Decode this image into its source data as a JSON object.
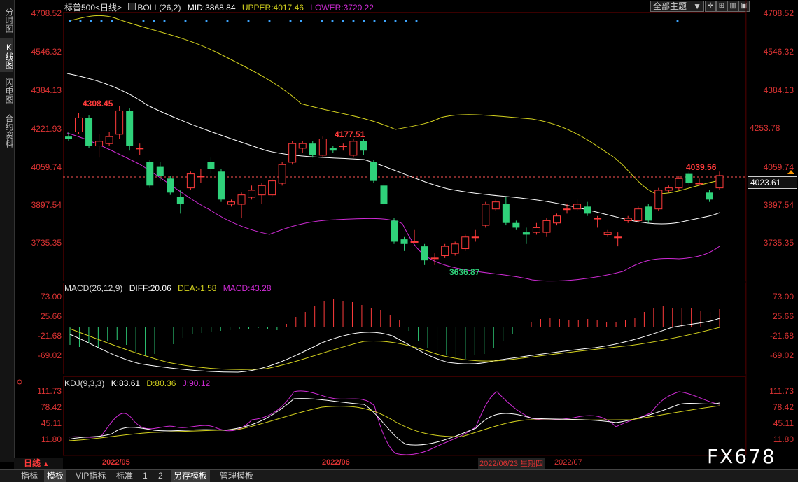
{
  "left_tabs": [
    "分时图",
    "K线图",
    "闪电图",
    "合约资料"
  ],
  "main": {
    "instrument": "标普500",
    "period_tag": "<日线>",
    "indicator": "BOLL(26,2)",
    "mid": "MID:3868.84",
    "upper": "UPPER:4017.46",
    "lower": "LOWER:3720.22",
    "theme_select": "全部主题",
    "axis_labels": [
      "4708.52",
      "4546.32",
      "4384.13",
      "4221.93",
      "4059.74",
      "3897.54",
      "3735.35"
    ],
    "price_boxes": {
      "highlight": "4253.78",
      "current": "4023.61"
    },
    "annotations": {
      "high1": "4308.45",
      "high2": "4177.51",
      "low": "3636.87",
      "last_high": "4039.56"
    },
    "colors": {
      "up": "#ff3b3b",
      "down": "#2fd17a",
      "mid": "#ffffff",
      "upper": "#d4d21e",
      "lower": "#d02bd6",
      "axis": "#dd3333"
    }
  },
  "macd": {
    "title": "MACD(26,12,9)",
    "diff": "DIFF:20.06",
    "dea": "DEA:-1.58",
    "macd": "MACD:43.28",
    "axis_labels": [
      "73.00",
      "25.66",
      "-21.68",
      "-69.02"
    ]
  },
  "kdj": {
    "title": "KDJ(9,3,3)",
    "k": "K:83.61",
    "d": "D:80.36",
    "j": "J:90.12",
    "axis_labels": [
      "111.73",
      "78.42",
      "45.11",
      "11.80"
    ]
  },
  "x_axis": {
    "period_button": "日线",
    "labels": [
      "2022/05",
      "2022/06",
      "2022/06/23 星期四",
      "2022/07"
    ]
  },
  "watermark": "FX678",
  "bottom_tabs": [
    "指标",
    "模板",
    "VIP指标",
    "标准",
    "1",
    "2",
    "另存模板",
    "管理模板"
  ]
}
